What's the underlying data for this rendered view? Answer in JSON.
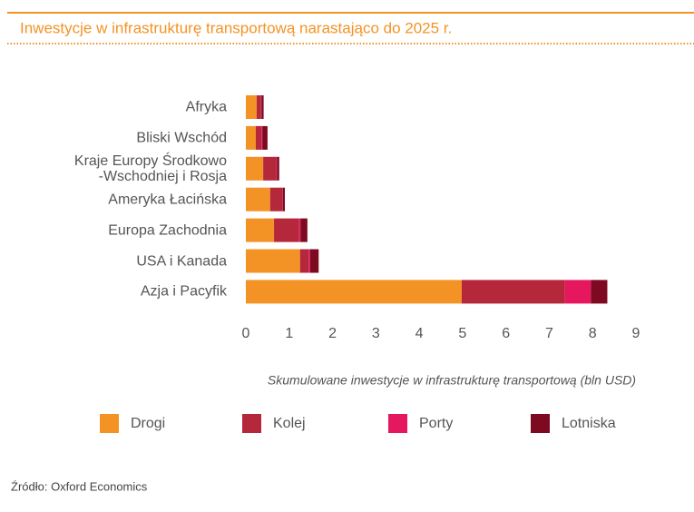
{
  "chart_data": {
    "type": "stacked-bar-horizontal",
    "title": "Inwestycje w infrastrukturę transportową narastająco do 2025 r.",
    "categories": [
      "Afryka",
      "Bliski Wschód",
      "Kraje Europy Środkowo\n-Wschodniej i Rosja",
      "Ameryka Łacińska",
      "Europa Zachodnia",
      "USA i Kanada",
      "Azja i Pacyfik"
    ],
    "series": [
      {
        "name": "Drogi",
        "color": "#f39325",
        "values": [
          0.25,
          0.23,
          0.4,
          0.56,
          0.65,
          1.25,
          4.98
        ]
      },
      {
        "name": "Kolej",
        "color": "#b5283b",
        "values": [
          0.1,
          0.13,
          0.31,
          0.28,
          0.58,
          0.2,
          2.38
        ]
      },
      {
        "name": "Porty",
        "color": "#e5185f",
        "values": [
          0.01,
          0.02,
          0.01,
          0.01,
          0.03,
          0.03,
          0.6
        ]
      },
      {
        "name": "Lotniska",
        "color": "#7d0a20",
        "values": [
          0.05,
          0.12,
          0.05,
          0.05,
          0.16,
          0.2,
          0.38
        ]
      }
    ],
    "xlabel": "Skumulowane inwestycje w infrastrukturę transportową (bln USD)",
    "xlim": [
      0,
      9
    ],
    "xticks": [
      0,
      1,
      2,
      3,
      4,
      5,
      6,
      7,
      8,
      9
    ],
    "source": "Źródło: Oxford Economics"
  }
}
